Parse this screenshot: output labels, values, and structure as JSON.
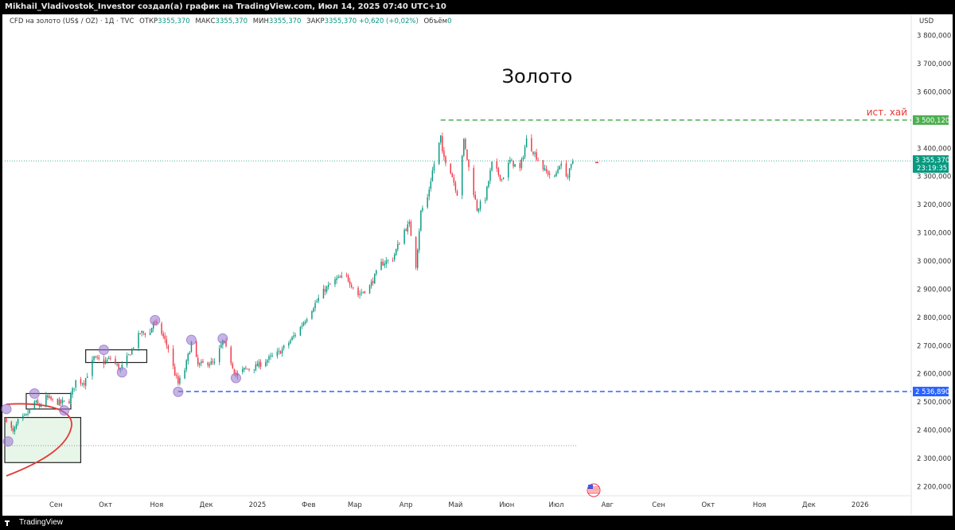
{
  "header": {
    "attribution": "Mikhail_Vladivostok_Investor создал(а) график на TradingView.com, Июл 14, 2025 07:40 UTC+10"
  },
  "infobar": {
    "symbol": "CFD на золото (US$ / OZ) · 1Д · TVC",
    "open_label": "ОТКР",
    "open_value": "3355,370",
    "high_label": "МАКС",
    "high_value": "3355,370",
    "low_label": "МИН",
    "low_value": "3355,370",
    "close_label": "ЗАКР",
    "close_value": "3355,370",
    "change": "+0,620 (+0,02%)",
    "volume_label": "Объём",
    "volume_value": "0"
  },
  "currency": "USD",
  "footer": {
    "brand": "TradingView"
  },
  "chart_data": {
    "type": "candlestick",
    "title": "Золото",
    "instrument": "CFD на золото (US$ / OZ)",
    "timeframe": "1Д",
    "ylim": [
      2170,
      3830
    ],
    "y_ticks": [
      {
        "value": 2200,
        "label": "2 200,000"
      },
      {
        "value": 2300,
        "label": "2 300,000"
      },
      {
        "value": 2400,
        "label": "2 400,000"
      },
      {
        "value": 2500,
        "label": "2 500,000"
      },
      {
        "value": 2600,
        "label": "2 600,000"
      },
      {
        "value": 2700,
        "label": "2 700,000"
      },
      {
        "value": 2800,
        "label": "2 800,000"
      },
      {
        "value": 2900,
        "label": "2 900,000"
      },
      {
        "value": 3000,
        "label": "3 000,000"
      },
      {
        "value": 3100,
        "label": "3 100,000"
      },
      {
        "value": 3200,
        "label": "3 200,000"
      },
      {
        "value": 3300,
        "label": "3 300,000"
      },
      {
        "value": 3400,
        "label": "3 400,000"
      },
      {
        "value": 3600,
        "label": "3 600,000"
      },
      {
        "value": 3700,
        "label": "3 700,000"
      },
      {
        "value": 3800,
        "label": "3 800,000"
      }
    ],
    "x_range": [
      "2024-08-01",
      "2026-01-31"
    ],
    "x_ticks": [
      {
        "date": "2024-09-01",
        "label": "Сен"
      },
      {
        "date": "2024-10-01",
        "label": "Окт"
      },
      {
        "date": "2024-11-01",
        "label": "Ноя"
      },
      {
        "date": "2024-12-01",
        "label": "Дек"
      },
      {
        "date": "2025-01-01",
        "label": "2025"
      },
      {
        "date": "2025-02-01",
        "label": "Фев"
      },
      {
        "date": "2025-03-01",
        "label": "Мар"
      },
      {
        "date": "2025-04-01",
        "label": "Апр"
      },
      {
        "date": "2025-05-01",
        "label": "Май"
      },
      {
        "date": "2025-06-01",
        "label": "Июн"
      },
      {
        "date": "2025-07-01",
        "label": "Июл"
      },
      {
        "date": "2025-08-01",
        "label": "Авг"
      },
      {
        "date": "2025-09-01",
        "label": "Сен"
      },
      {
        "date": "2025-10-01",
        "label": "Окт"
      },
      {
        "date": "2025-11-01",
        "label": "Ноя"
      },
      {
        "date": "2025-12-01",
        "label": "Дек"
      },
      {
        "date": "2026-01-01",
        "label": "2026"
      }
    ],
    "price_path": [
      [
        "2024-08-02",
        2440
      ],
      [
        "2024-08-06",
        2390
      ],
      [
        "2024-08-09",
        2430
      ],
      [
        "2024-08-14",
        2450
      ],
      [
        "2024-08-19",
        2500
      ],
      [
        "2024-08-22",
        2485
      ],
      [
        "2024-08-26",
        2515
      ],
      [
        "2024-08-30",
        2505
      ],
      [
        "2024-09-04",
        2495
      ],
      [
        "2024-09-09",
        2505
      ],
      [
        "2024-09-13",
        2575
      ],
      [
        "2024-09-18",
        2570
      ],
      [
        "2024-09-24",
        2655
      ],
      [
        "2024-09-30",
        2640
      ],
      [
        "2024-10-04",
        2655
      ],
      [
        "2024-10-10",
        2615
      ],
      [
        "2024-10-16",
        2675
      ],
      [
        "2024-10-22",
        2745
      ],
      [
        "2024-10-28",
        2745
      ],
      [
        "2024-10-30",
        2785
      ],
      [
        "2024-11-04",
        2745
      ],
      [
        "2024-11-08",
        2690
      ],
      [
        "2024-11-12",
        2600
      ],
      [
        "2024-11-14",
        2565
      ],
      [
        "2024-11-18",
        2615
      ],
      [
        "2024-11-22",
        2710
      ],
      [
        "2024-11-26",
        2630
      ],
      [
        "2024-12-02",
        2640
      ],
      [
        "2024-12-06",
        2635
      ],
      [
        "2024-12-11",
        2715
      ],
      [
        "2024-12-15",
        2660
      ],
      [
        "2024-12-19",
        2595
      ],
      [
        "2024-12-24",
        2615
      ],
      [
        "2024-12-31",
        2625
      ],
      [
        "2025-01-07",
        2650
      ],
      [
        "2025-01-14",
        2675
      ],
      [
        "2025-01-20",
        2710
      ],
      [
        "2025-01-27",
        2765
      ],
      [
        "2025-02-04",
        2840
      ],
      [
        "2025-02-11",
        2900
      ],
      [
        "2025-02-18",
        2935
      ],
      [
        "2025-02-24",
        2945
      ],
      [
        "2025-03-03",
        2880
      ],
      [
        "2025-03-10",
        2910
      ],
      [
        "2025-03-17",
        2990
      ],
      [
        "2025-03-24",
        3010
      ],
      [
        "2025-03-31",
        3110
      ],
      [
        "2025-04-03",
        3130
      ],
      [
        "2025-04-07",
        2985
      ],
      [
        "2025-04-10",
        3175
      ],
      [
        "2025-04-14",
        3225
      ],
      [
        "2025-04-17",
        3320
      ],
      [
        "2025-04-22",
        3440
      ],
      [
        "2025-04-23",
        3380
      ],
      [
        "2025-04-28",
        3320
      ],
      [
        "2025-05-02",
        3240
      ],
      [
        "2025-05-06",
        3425
      ],
      [
        "2025-05-09",
        3330
      ],
      [
        "2025-05-14",
        3185
      ],
      [
        "2025-05-19",
        3225
      ],
      [
        "2025-05-23",
        3345
      ],
      [
        "2025-05-29",
        3290
      ],
      [
        "2025-06-03",
        3355
      ],
      [
        "2025-06-09",
        3325
      ],
      [
        "2025-06-13",
        3430
      ],
      [
        "2025-06-18",
        3380
      ],
      [
        "2025-06-24",
        3320
      ],
      [
        "2025-06-30",
        3295
      ],
      [
        "2025-07-03",
        3345
      ],
      [
        "2025-07-08",
        3300
      ],
      [
        "2025-07-11",
        3355
      ]
    ],
    "last_price": {
      "value": 3355.37,
      "label": "3 355,370",
      "countdown": "23:19:35"
    },
    "levels": [
      {
        "name": "ист. хай",
        "value": 3500.12,
        "label": "3 500,120",
        "from": "2025-04-22",
        "color": "#4caf50"
      },
      {
        "value": 2536.89,
        "label": "2 536,890",
        "from": "2024-11-14",
        "color": "#2962ff"
      }
    ],
    "dotted_level": {
      "value": 2345,
      "from": "2024-08-01",
      "to": "2025-07-14"
    },
    "zones": [
      {
        "x1": "2024-08-01",
        "x2": "2024-09-16",
        "y1": 2285,
        "y2": 2445,
        "fill": "#e8f5e9"
      },
      {
        "x1": "2024-08-14",
        "x2": "2024-09-10",
        "y1": 2475,
        "y2": 2530,
        "fill": "none"
      },
      {
        "x1": "2024-09-19",
        "x2": "2024-10-26",
        "y1": 2640,
        "y2": 2685,
        "fill": "none"
      }
    ],
    "markers": [
      {
        "date": "2024-08-01",
        "value": 2475
      },
      {
        "date": "2024-08-03",
        "value": 2360
      },
      {
        "date": "2024-08-19",
        "value": 2530
      },
      {
        "date": "2024-09-06",
        "value": 2470
      },
      {
        "date": "2024-09-30",
        "value": 2685
      },
      {
        "date": "2024-10-11",
        "value": 2605
      },
      {
        "date": "2024-10-31",
        "value": 2790
      },
      {
        "date": "2024-11-14",
        "value": 2536
      },
      {
        "date": "2024-11-22",
        "value": 2720
      },
      {
        "date": "2024-12-11",
        "value": 2725
      },
      {
        "date": "2024-12-19",
        "value": 2585
      }
    ],
    "colors": {
      "up": "#089981",
      "down": "#f23645",
      "wick": "#333333"
    }
  }
}
